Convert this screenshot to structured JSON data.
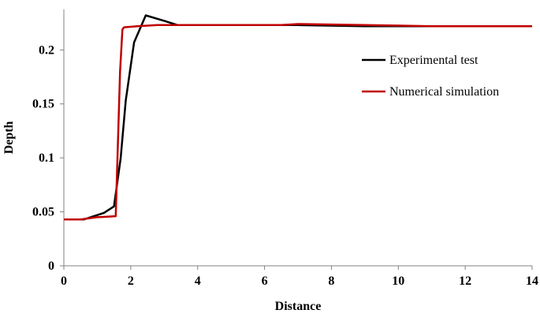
{
  "chart_data": {
    "type": "line",
    "title": "",
    "xlabel": "Distance",
    "ylabel": "Depth",
    "xlim": [
      0,
      14
    ],
    "ylim": [
      0,
      0.2375
    ],
    "x_ticks": [
      0,
      2,
      4,
      6,
      8,
      10,
      12,
      14
    ],
    "x_tick_labels": [
      "0",
      "2",
      "4",
      "6",
      "8",
      "10",
      "12",
      "14"
    ],
    "y_ticks": [
      0,
      0.05,
      0.1,
      0.15,
      0.2
    ],
    "y_tick_labels": [
      "0",
      "0.05",
      "0.1",
      "0.15",
      "0.2"
    ],
    "grid": false,
    "legend_position": "right",
    "series": [
      {
        "name": "Experimental test",
        "color": "#000000",
        "x": [
          0,
          0.6,
          1.2,
          1.5,
          1.7,
          1.85,
          2.1,
          2.45,
          3.0,
          3.4,
          5.0,
          7.0,
          9.0,
          11.0,
          14.0
        ],
        "y": [
          0.043,
          0.043,
          0.049,
          0.055,
          0.1,
          0.153,
          0.207,
          0.232,
          0.227,
          0.223,
          0.223,
          0.223,
          0.222,
          0.222,
          0.222
        ]
      },
      {
        "name": "Numerical simulation",
        "color": "#c00000",
        "x": [
          0,
          0.5,
          1.0,
          1.55,
          1.68,
          1.75,
          1.8,
          2.2,
          2.8,
          3.5,
          5.0,
          6.5,
          7.0,
          9.0,
          11.0,
          14.0
        ],
        "y": [
          0.043,
          0.043,
          0.045,
          0.046,
          0.18,
          0.219,
          0.221,
          0.222,
          0.223,
          0.223,
          0.223,
          0.223,
          0.224,
          0.223,
          0.222,
          0.222
        ]
      }
    ]
  }
}
